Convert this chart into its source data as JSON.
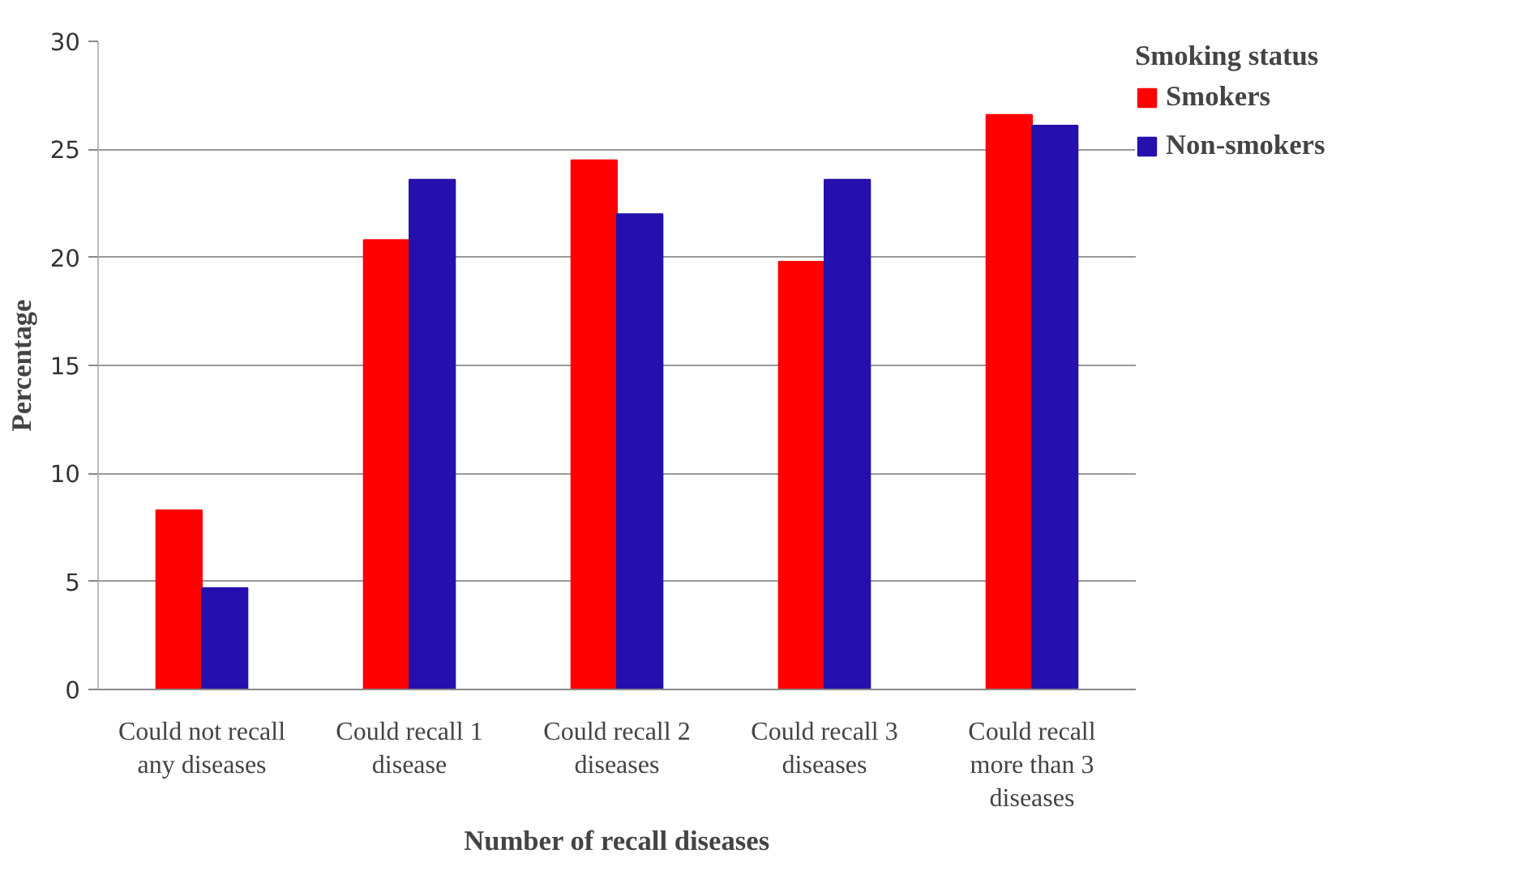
{
  "chart_data": {
    "type": "bar",
    "xlabel": "Number of recall diseases",
    "ylabel": "Percentage",
    "legend_title": "Smoking status",
    "categories": [
      "Could not recall any diseases",
      "Could recall 1 disease",
      "Could recall 2 diseases",
      "Could recall 3 diseases",
      "Could recall more than 3 diseases"
    ],
    "series": [
      {
        "name": "Smokers",
        "color": "#ff0000",
        "values": [
          8.3,
          20.8,
          24.5,
          19.8,
          26.6
        ]
      },
      {
        "name": "Non-smokers",
        "color": "#2510ad",
        "values": [
          4.7,
          23.6,
          22.0,
          23.6,
          26.1
        ]
      }
    ],
    "ylim": [
      0,
      30
    ],
    "yticks": [
      0,
      5,
      10,
      15,
      20,
      25,
      30
    ],
    "grid": "y",
    "legend": "right"
  }
}
